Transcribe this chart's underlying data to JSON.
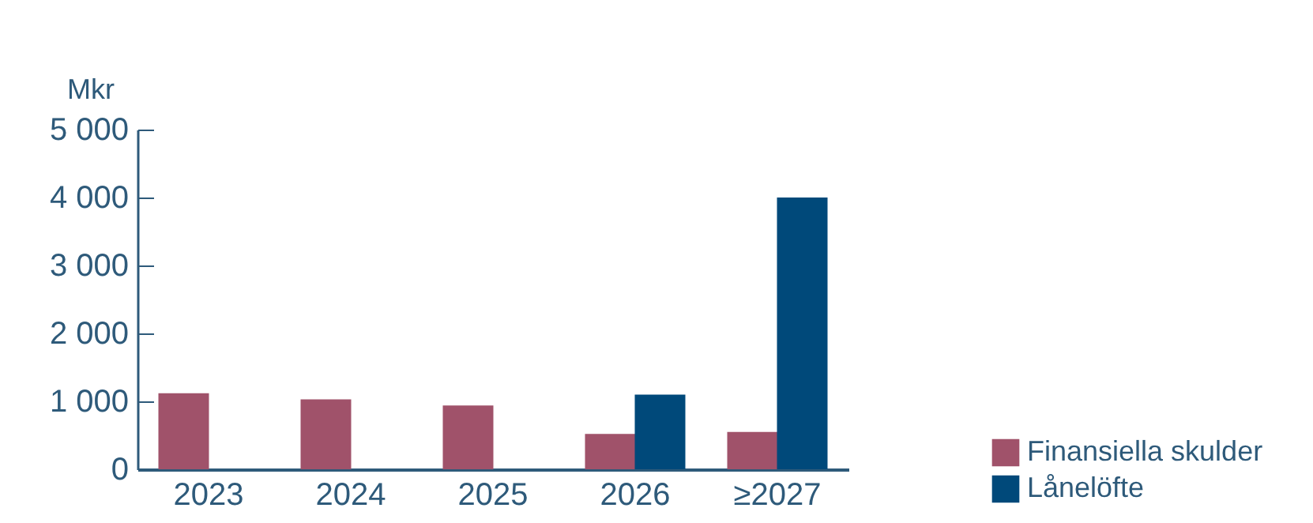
{
  "chart_data": {
    "type": "bar",
    "ylabel": "Mkr",
    "categories": [
      "2023",
      "2024",
      "2025",
      "2026",
      "≥2027"
    ],
    "series": [
      {
        "name": "Finansiella skulder",
        "color": "#a0526a",
        "values": [
          1120,
          1030,
          940,
          520,
          550
        ]
      },
      {
        "name": "Lånelöfte",
        "color": "#00497a",
        "values": [
          null,
          null,
          null,
          1100,
          4000
        ]
      }
    ],
    "ylim": [
      0,
      5000
    ],
    "yticks": [
      {
        "value": 0,
        "label": "0"
      },
      {
        "value": 1000,
        "label": "1 000"
      },
      {
        "value": 2000,
        "label": "2 000"
      },
      {
        "value": 3000,
        "label": "3 000"
      },
      {
        "value": 4000,
        "label": "4 000"
      },
      {
        "value": 5000,
        "label": "5 000"
      }
    ],
    "grid": false,
    "legend": "bottom right"
  }
}
